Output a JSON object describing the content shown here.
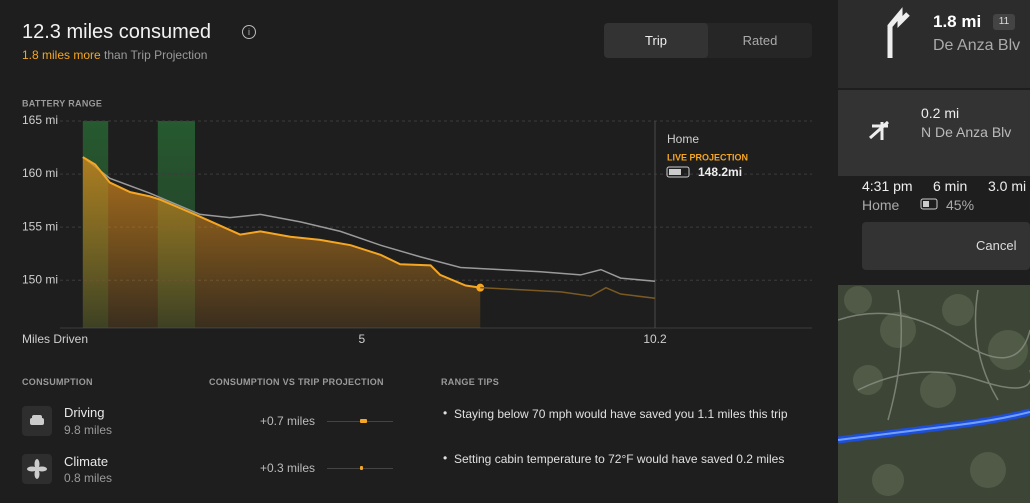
{
  "header": {
    "title": "12.3 miles consumed",
    "delta": "1.8 miles more",
    "delta_suffix": "than Trip Projection"
  },
  "tabs": [
    "Trip",
    "Rated"
  ],
  "chart_data": {
    "type": "line",
    "title": "BATTERY RANGE",
    "x_label": "Miles Driven",
    "xlim": [
      0,
      10.2
    ],
    "xticks": [
      5,
      10.2
    ],
    "ylim": [
      145.5,
      165
    ],
    "yticks": [
      {
        "value": 150,
        "label": "150 mi"
      },
      {
        "value": 155,
        "label": "155 mi"
      },
      {
        "value": 160,
        "label": "160 mi"
      },
      {
        "value": 165,
        "label": "165 mi"
      }
    ],
    "grid": true,
    "series": [
      {
        "color": "#9a9a9a",
        "x": [
          0.05,
          0.53,
          1.24,
          2.13,
          2.66,
          3.2,
          3.91,
          4.62,
          5.33,
          6.04,
          6.75,
          7.46,
          8.17,
          8.88,
          9.24,
          9.59,
          10.2
        ],
        "values": [
          161.6,
          159.6,
          158.2,
          156.2,
          155.9,
          156.2,
          155.5,
          154.6,
          153.3,
          152.2,
          151.2,
          151.0,
          150.8,
          150.5,
          151.0,
          150.2,
          149.9
        ]
      },
      {
        "color": "#f5a623",
        "x": [
          0.05,
          0.27,
          0.53,
          0.89,
          1.24,
          1.42,
          2.04,
          2.84,
          3.2,
          3.73,
          4.26,
          4.8,
          5.33,
          5.68,
          6.22,
          6.39,
          6.84,
          7.1
        ],
        "values": [
          161.6,
          160.9,
          159.2,
          158.3,
          157.9,
          157.6,
          156.2,
          154.3,
          154.6,
          154.1,
          153.8,
          153.3,
          152.4,
          151.5,
          151.4,
          150.5,
          149.5,
          149.3
        ]
      },
      {
        "color": "#7a5a22",
        "x": [
          7.1,
          7.82,
          8.53,
          9.06,
          9.33,
          9.59,
          10.2
        ],
        "values": [
          149.3,
          149.1,
          148.9,
          148.5,
          149.3,
          148.7,
          148.3
        ]
      }
    ],
    "regen_ranges": [
      {
        "start": 0.05,
        "end": 0.5
      },
      {
        "start": 1.38,
        "end": 2.04
      }
    ],
    "annotation": {
      "destination": "Home",
      "label": "LIVE PROJECTION",
      "value": "148.2mi"
    }
  },
  "consumption": {
    "title": "CONSUMPTION",
    "items": [
      {
        "label": "Driving",
        "value": "9.8 miles"
      },
      {
        "label": "Climate",
        "value": "0.8 miles"
      }
    ]
  },
  "comparison": {
    "title": "CONSUMPTION VS TRIP PROJECTION",
    "items": [
      {
        "value": 0.7,
        "label": "+0.7 miles"
      },
      {
        "value": 0.3,
        "label": "+0.3 miles"
      }
    ]
  },
  "tips": {
    "title": "RANGE TIPS",
    "items": [
      "Staying below 70 mph would have saved you 1.1 miles this trip",
      "Setting cabin temperature to 72°F would have saved 0.2 miles"
    ]
  },
  "navigation": {
    "next": {
      "distance": "1.8 mi",
      "exit": "11",
      "road": "De Anza Blv"
    },
    "then": {
      "distance": "0.2 mi",
      "road": "N De Anza Blv"
    },
    "arrival": {
      "time": "4:31 pm",
      "duration": "6 min",
      "distance": "3.0 mi",
      "destination": "Home",
      "battery": "45%"
    },
    "cancel": "Cancel"
  }
}
